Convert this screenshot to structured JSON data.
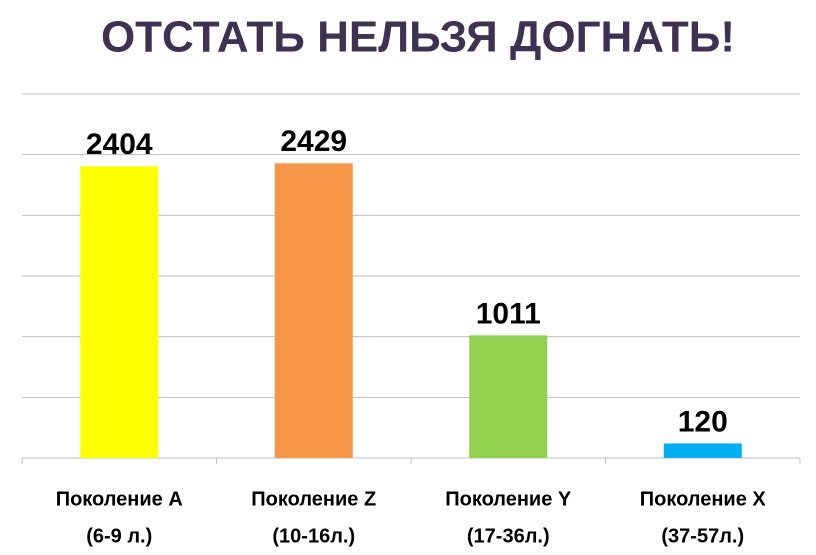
{
  "chart_data": {
    "type": "bar",
    "title": "ОТСТАТЬ НЕЛЬЗЯ ДОГНАТЬ!",
    "categories": [
      [
        "Поколение А",
        "(6-9 л.)"
      ],
      [
        "Поколение Z",
        "(10-16л.)"
      ],
      [
        "Поколение Y",
        "(17-36л.)"
      ],
      [
        "Поколение X",
        "(37-57л.)"
      ]
    ],
    "values": [
      2404,
      2429,
      1011,
      120
    ],
    "colors": [
      "#ffff00",
      "#f79646",
      "#92d050",
      "#00b0f0"
    ],
    "ylim": [
      0,
      3000
    ],
    "yticks": [
      0,
      500,
      1000,
      1500,
      2000,
      2500,
      3000
    ],
    "grid": true
  }
}
